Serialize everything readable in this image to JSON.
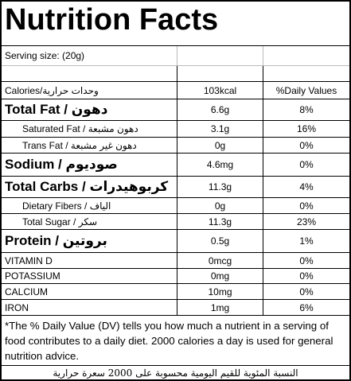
{
  "title": "Nutrition Facts",
  "serving": "Serving size:  (20g)",
  "table": {
    "rows": [
      [
        "Calories/وحدات حرارية",
        "103kcal",
        "%Daily Values"
      ],
      [
        "Total Fat / دهون",
        "6.6g",
        "8%"
      ],
      [
        "Saturated Fat / دهون مشبعة",
        "3.1g",
        "16%"
      ],
      [
        "Trans Fat / دهون غير مشبعة",
        "0g",
        "0%"
      ],
      [
        "Sodium / صوديوم",
        "4.6mg",
        "0%"
      ],
      [
        "Total Carbs / كربوهيدرات",
        "11.3g",
        "4%"
      ],
      [
        "Dietary Fibers / الياف",
        "0g",
        "0%"
      ],
      [
        "Total Sugar / سكر",
        "11.3g",
        "23%"
      ],
      [
        "Protein / بروتين",
        "0.5g",
        "1%"
      ],
      [
        "VITAMIN D",
        "0mcg",
        "0%"
      ],
      [
        "POTASSIUM",
        "0mg",
        "0%"
      ],
      [
        "CALCIUM",
        "10mg",
        "0%"
      ],
      [
        "IRON",
        "1mg",
        "6%"
      ]
    ]
  },
  "footnote": "*The % Daily Value (DV) tells you how much a nutrient in a serving of food contributes to a daily diet. 2000 calories a day is used for general nutrition advice.",
  "footnote_ar": "النسبة المئوية للقيم اليومية محسوبة على 2000 سعرة حرارية"
}
